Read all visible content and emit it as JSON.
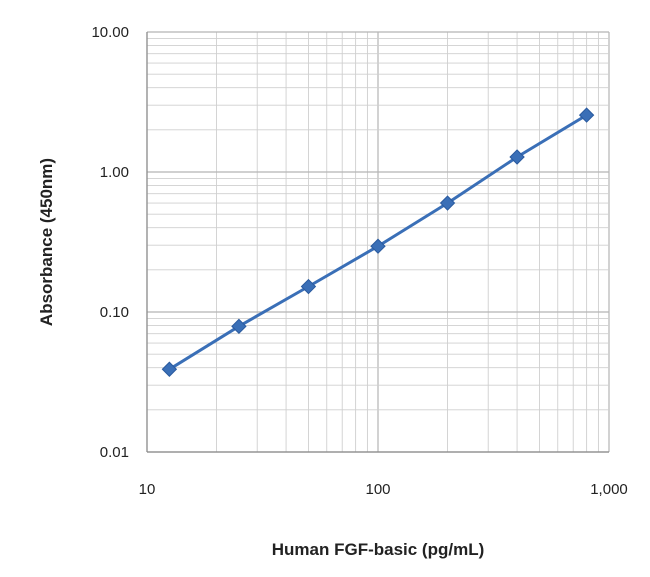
{
  "chart_data": {
    "type": "line",
    "title": "",
    "xlabel": "Human FGF-basic (pg/mL)",
    "ylabel": "Absorbance (450nm)",
    "x_scale": "log",
    "y_scale": "log",
    "xlim": [
      10,
      1000
    ],
    "ylim": [
      0.01,
      10
    ],
    "x_ticks": [
      "10",
      "100",
      "1,000"
    ],
    "y_ticks": [
      "0.01",
      "0.10",
      "1.00",
      "10.00"
    ],
    "grid": true,
    "legend": "none",
    "series": [
      {
        "x": [
          12.5,
          25,
          50,
          100,
          200,
          400,
          800
        ],
        "y": [
          0.039,
          0.079,
          0.152,
          0.295,
          0.6,
          1.28,
          2.55
        ],
        "color": "#3a6fb7",
        "marker": "diamond"
      }
    ]
  }
}
